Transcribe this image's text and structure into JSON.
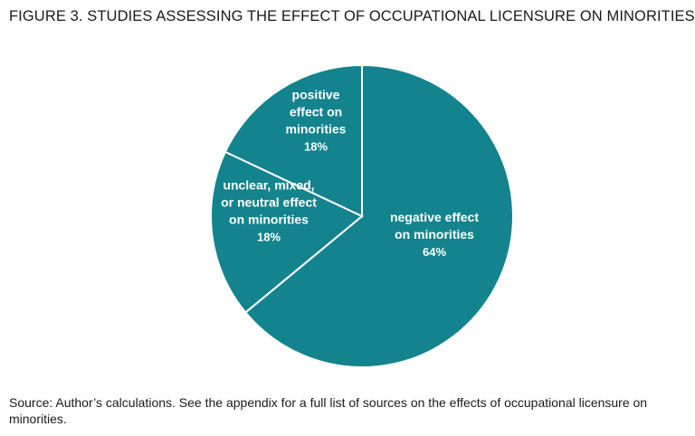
{
  "title": "FIGURE 3. STUDIES ASSESSING THE EFFECT OF OCCUPATIONAL LICENSURE ON MINORITIES",
  "source": "Source: Author’s calculations. See the appendix for a full list of sources on the effects of occupational licensure on minorities.",
  "colors": {
    "slice_fill": "#13838e",
    "slice_border": "#ffffff",
    "label_text": "#ffffff"
  },
  "chart_data": {
    "type": "pie",
    "title": "FIGURE 3. STUDIES ASSESSING THE EFFECT OF OCCUPATIONAL LICENSURE ON MINORITIES",
    "slices": [
      {
        "label_lines": [
          "negative effect",
          "on minorities"
        ],
        "value": 64,
        "display": "64%"
      },
      {
        "label_lines": [
          "unclear, mixed,",
          "or neutral effect",
          "on minorities"
        ],
        "value": 18,
        "display": "18%"
      },
      {
        "label_lines": [
          "positive",
          "effect on",
          "minorities"
        ],
        "value": 18,
        "display": "18%"
      }
    ],
    "start": "12 o'clock",
    "direction": "clockwise",
    "legend": "none (labels inside slices)"
  }
}
